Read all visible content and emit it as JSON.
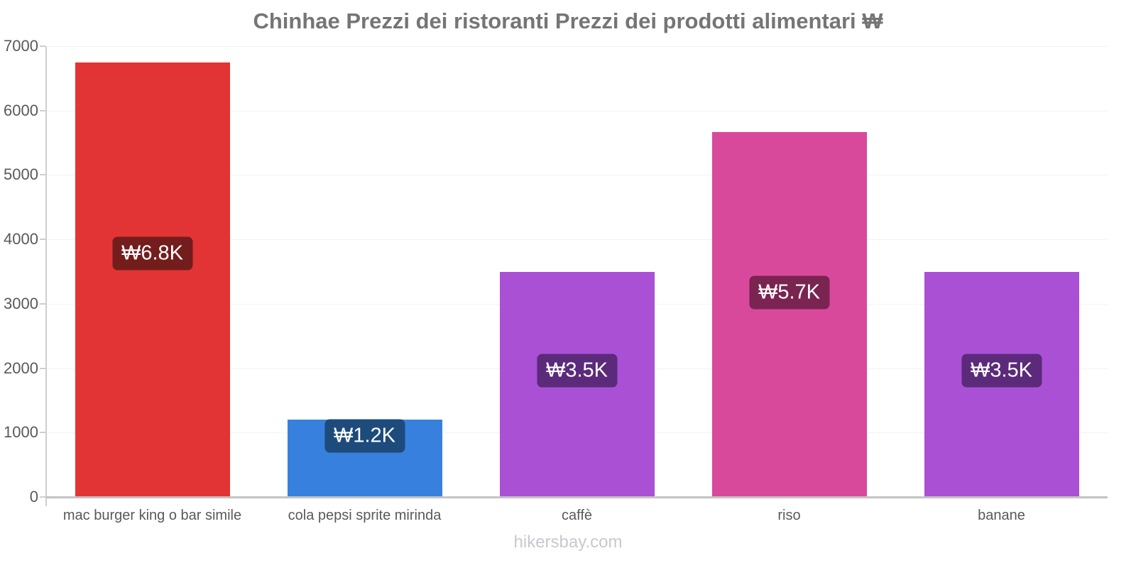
{
  "title": "Chinhae Prezzi dei ristoranti Prezzi dei prodotti alimentari ₩",
  "footer": "hikersbay.com",
  "chart_data": {
    "type": "bar",
    "title": "Chinhae Prezzi dei ristoranti Prezzi dei prodotti alimentari ₩",
    "xlabel": "",
    "ylabel": "",
    "ylim": [
      0,
      7000
    ],
    "yticks": [
      0,
      1000,
      2000,
      3000,
      4000,
      5000,
      6000,
      7000
    ],
    "grid": true,
    "legend": false,
    "categories": [
      "mac burger king o bar simile",
      "cola pepsi sprite mirinda",
      "caffè",
      "riso",
      "banane"
    ],
    "values": [
      6750,
      1200,
      3500,
      5670,
      3500
    ],
    "value_labels": [
      "₩6.8K",
      "₩1.2K",
      "₩3.5K",
      "₩5.7K",
      "₩3.5K"
    ],
    "bar_colors": [
      "#e23434",
      "#3880dd",
      "#a950d5",
      "#d8499c",
      "#a950d5"
    ],
    "badge_colors": [
      "#731d1d",
      "#1d4b7c",
      "#5b2a7a",
      "#792451",
      "#5b2a7a"
    ],
    "axis_color": "#cfcfcf",
    "grid_color": "#f3f3f3",
    "text_color": "#595959"
  }
}
